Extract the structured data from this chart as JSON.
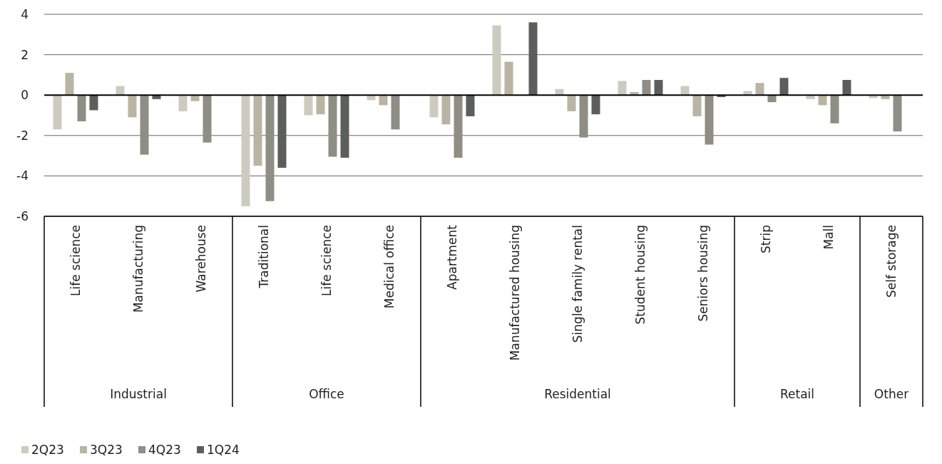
{
  "chart_data": {
    "type": "bar",
    "categories": [
      "Life science",
      "Manufacturing",
      "Warehouse",
      "Traditional",
      "Life science",
      "Medical office",
      "Apartment",
      "Manufactured housing",
      "Single family rental",
      "Student housing",
      "Seniors housing",
      "Strip",
      "Mall",
      "Self storage"
    ],
    "series": [
      {
        "name": "2Q23",
        "color": "#cdcbbf",
        "values": [
          -1.7,
          0.45,
          -0.8,
          -5.5,
          -1.0,
          -0.25,
          -1.1,
          3.45,
          0.3,
          0.7,
          0.45,
          0.2,
          -0.2,
          -0.15
        ]
      },
      {
        "name": "3Q23",
        "color": "#bab4a3",
        "values": [
          1.1,
          -1.1,
          -0.3,
          -3.5,
          -0.95,
          -0.5,
          -1.45,
          1.65,
          -0.8,
          0.15,
          -1.05,
          0.6,
          -0.5,
          -0.2
        ]
      },
      {
        "name": "4Q23",
        "color": "#8e8e84",
        "values": [
          -1.3,
          -2.95,
          -2.35,
          -5.25,
          -3.05,
          -1.7,
          -3.1,
          null,
          -2.1,
          0.75,
          -2.45,
          -0.35,
          -1.4,
          -1.8
        ]
      },
      {
        "name": "1Q24",
        "color": "#5c5e5b",
        "values": [
          -0.75,
          -0.2,
          null,
          -3.6,
          -3.1,
          null,
          -1.05,
          3.6,
          -0.95,
          0.75,
          -0.1,
          0.85,
          0.75,
          null
        ]
      }
    ],
    "annotations": [
      "Industrial",
      "Office",
      "Residential",
      "Retail",
      "Other"
    ],
    "ylim": [
      -6,
      4
    ],
    "yticks": [
      -6,
      -4,
      -2,
      0,
      2,
      4
    ],
    "grid": "y",
    "legend": "bottom left"
  }
}
